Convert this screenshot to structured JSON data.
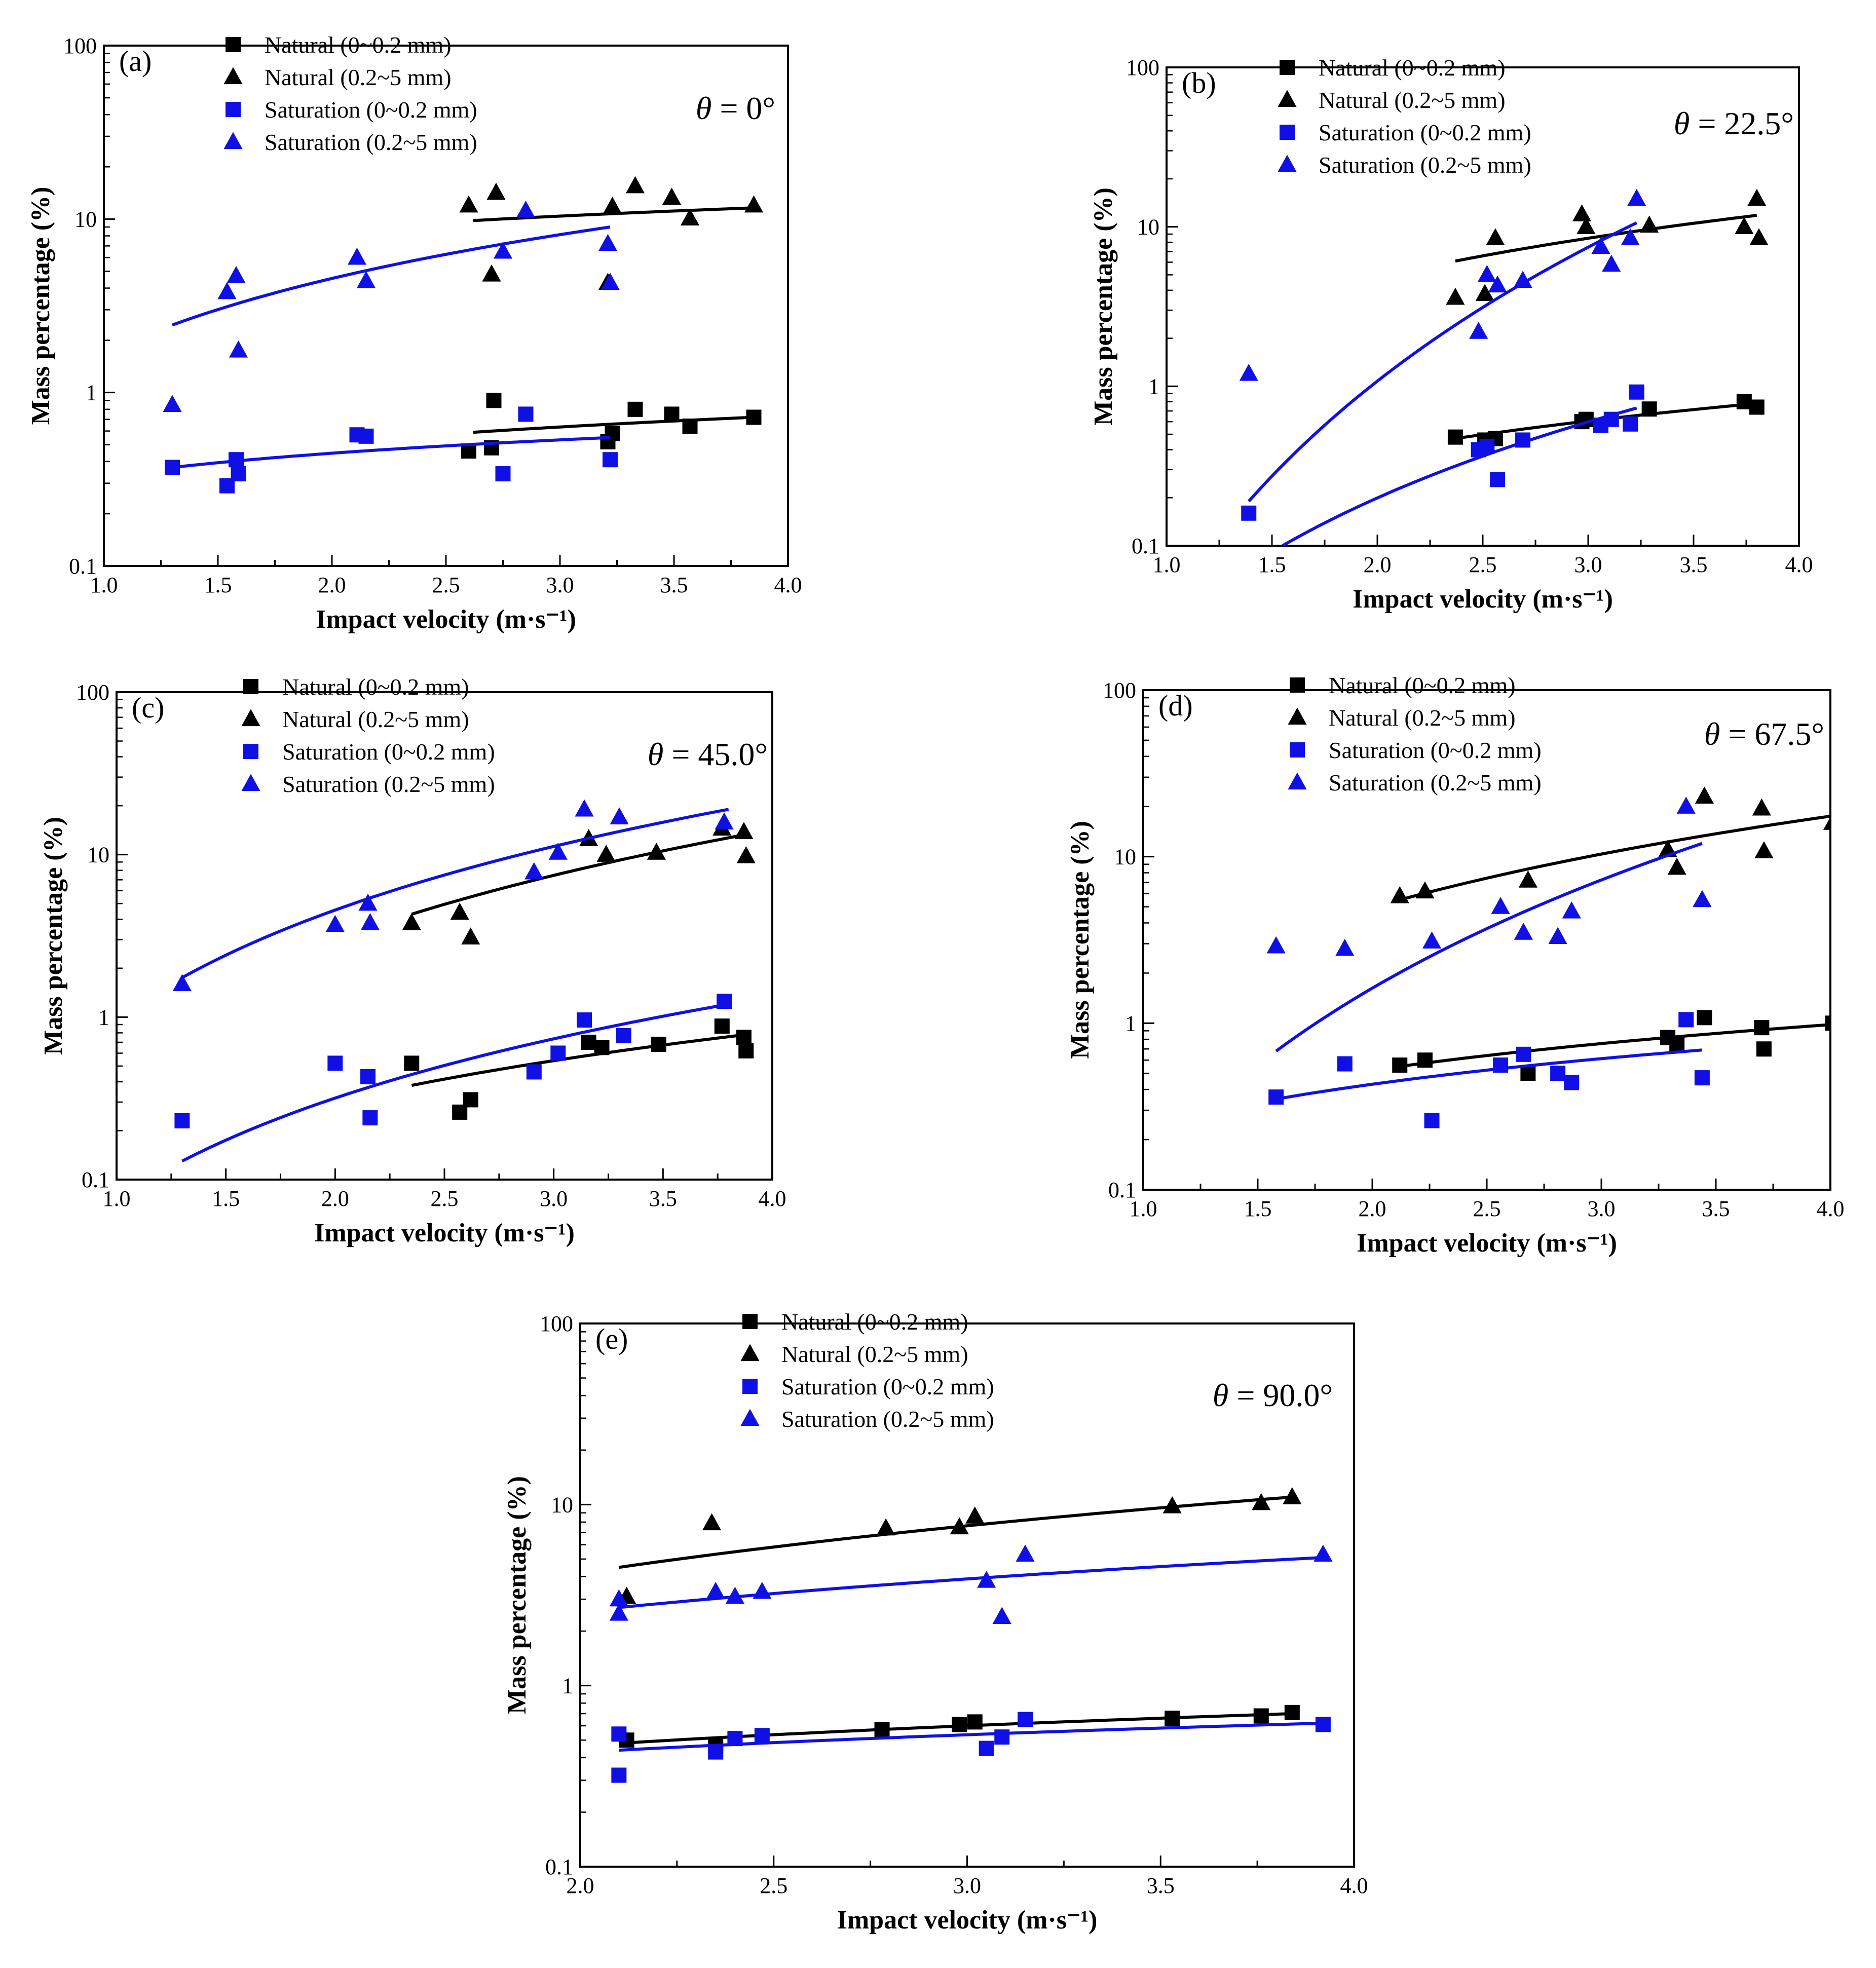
{
  "colors": {
    "natural": "#000000",
    "saturation": "#1010e6"
  },
  "legend_labels": [
    "Natural (0~0.2 mm)",
    "Natural (0.2~5 mm)",
    "Saturation (0~0.2 mm)",
    "Saturation (0.2~5 mm)"
  ],
  "chart_data": [
    {
      "type": "scatter",
      "panel": "(a)",
      "theta_label": "θ = 0°",
      "xlabel": "Impact velocity (m·s⁻¹)",
      "ylabel": "Mass percentage (%)",
      "xlim": [
        1.0,
        4.0
      ],
      "ylim": [
        0.1,
        100
      ],
      "yscale": "log",
      "xticks": [
        "1.0",
        "1.5",
        "2.0",
        "2.5",
        "3.0",
        "3.5",
        "4.0"
      ],
      "yticks": [
        "0.1",
        "1",
        "10",
        "100"
      ],
      "legend_position": "top-center",
      "series": [
        {
          "name": "Natural (0~0.2 mm)",
          "marker": "square",
          "color": "#000000",
          "x": [
            2.6,
            2.7,
            2.71,
            3.21,
            3.23,
            3.33,
            3.49,
            3.57,
            3.85
          ],
          "y": [
            0.46,
            0.48,
            0.9,
            0.52,
            0.58,
            0.8,
            0.75,
            0.64,
            0.72
          ],
          "fit": {
            "x": [
              2.62,
              3.85
            ],
            "y": [
              0.59,
              0.72
            ]
          }
        },
        {
          "name": "Natural (0.2~5 mm)",
          "marker": "triangle",
          "color": "#000000",
          "x": [
            2.6,
            2.7,
            2.72,
            3.21,
            3.23,
            3.33,
            3.49,
            3.57,
            3.85
          ],
          "y": [
            12,
            4.8,
            14.2,
            4.3,
            11.8,
            15.5,
            13.3,
            10.1,
            12
          ],
          "fit": {
            "x": [
              2.62,
              3.85
            ],
            "y": [
              9.8,
              11.6
            ]
          }
        },
        {
          "name": "Saturation (0~0.2 mm)",
          "marker": "square",
          "color": "#1010e6",
          "x": [
            1.3,
            1.54,
            1.58,
            1.59,
            2.11,
            2.15,
            2.75,
            2.85,
            3.22
          ],
          "y": [
            0.37,
            0.29,
            0.41,
            0.34,
            0.57,
            0.56,
            0.34,
            0.75,
            0.41
          ],
          "fit": {
            "x": [
              1.3,
              3.22
            ],
            "y": [
              0.37,
              0.55
            ]
          }
        },
        {
          "name": "Saturation (0.2~5 mm)",
          "marker": "triangle",
          "color": "#1010e6",
          "x": [
            1.3,
            1.54,
            1.58,
            1.59,
            2.11,
            2.15,
            2.75,
            2.85,
            3.21,
            3.22
          ],
          "y": [
            0.85,
            3.8,
            4.7,
            1.75,
            6,
            4.4,
            6.5,
            11.2,
            7.2,
            4.3
          ],
          "fit": {
            "x": [
              1.3,
              3.22
            ],
            "y": [
              2.45,
              9.0
            ]
          }
        }
      ]
    },
    {
      "type": "scatter",
      "panel": "(b)",
      "theta_label": "θ = 22.5°",
      "xlabel": "Impact velocity (m·s⁻¹)",
      "ylabel": "Mass percentage (%)",
      "xlim": [
        1.0,
        4.0
      ],
      "ylim": [
        0.1,
        100
      ],
      "yscale": "log",
      "xticks": [
        "1.0",
        "1.5",
        "2.0",
        "2.5",
        "3.0",
        "3.5",
        "4.0"
      ],
      "yticks": [
        "0.1",
        "1",
        "10",
        "100"
      ],
      "legend_position": "top-center",
      "series": [
        {
          "name": "Natural (0~0.2 mm)",
          "marker": "square",
          "color": "#000000",
          "x": [
            2.37,
            2.51,
            2.56,
            2.97,
            2.99,
            3.29,
            3.74,
            3.8
          ],
          "y": [
            0.48,
            0.46,
            0.47,
            0.6,
            0.62,
            0.72,
            0.8,
            0.74
          ],
          "fit": {
            "x": [
              2.37,
              3.8
            ],
            "y": [
              0.47,
              0.78
            ]
          }
        },
        {
          "name": "Natural (0.2~5 mm)",
          "marker": "triangle",
          "color": "#000000",
          "x": [
            2.37,
            2.51,
            2.56,
            2.97,
            2.99,
            3.29,
            3.74,
            3.8,
            3.81
          ],
          "y": [
            3.6,
            3.8,
            8.5,
            12,
            10,
            10.2,
            10,
            15,
            8.5
          ],
          "fit": {
            "x": [
              2.37,
              3.8
            ],
            "y": [
              6.1,
              11.8
            ]
          }
        },
        {
          "name": "Saturation (0~0.2 mm)",
          "marker": "square",
          "color": "#1010e6",
          "x": [
            1.39,
            2.48,
            2.52,
            2.57,
            2.69,
            3.06,
            3.11,
            3.2,
            3.23
          ],
          "y": [
            0.16,
            0.4,
            0.42,
            0.26,
            0.46,
            0.57,
            0.62,
            0.58,
            0.92
          ],
          "fit": {
            "x": [
              1.55,
              3.23
            ],
            "y": [
              0.1,
              0.73
            ]
          }
        },
        {
          "name": "Saturation (0.2~5 mm)",
          "marker": "triangle",
          "color": "#1010e6",
          "x": [
            1.39,
            2.48,
            2.52,
            2.57,
            2.69,
            3.06,
            3.11,
            3.2,
            3.23
          ],
          "y": [
            1.2,
            2.2,
            5,
            4.3,
            4.6,
            7.5,
            5.8,
            8.5,
            15
          ],
          "fit": {
            "x": [
              1.39,
              3.23
            ],
            "y": [
              0.19,
              10.6
            ]
          }
        }
      ]
    },
    {
      "type": "scatter",
      "panel": "(c)",
      "theta_label": "θ = 45.0°",
      "xlabel": "Impact velocity (m·s⁻¹)",
      "ylabel": "Mass percentage (%)",
      "xlim": [
        1.0,
        4.0
      ],
      "ylim": [
        0.1,
        100
      ],
      "yscale": "log",
      "xticks": [
        "1.0",
        "1.5",
        "2.0",
        "2.5",
        "3.0",
        "3.5",
        "4.0"
      ],
      "yticks": [
        "0.1",
        "1",
        "10",
        "100"
      ],
      "legend_position": "top-center",
      "series": [
        {
          "name": "Natural (0~0.2 mm)",
          "marker": "square",
          "color": "#000000",
          "x": [
            2.35,
            2.57,
            2.62,
            3.16,
            3.22,
            3.48,
            3.77,
            3.87,
            3.88
          ],
          "y": [
            0.52,
            0.26,
            0.31,
            0.7,
            0.65,
            0.68,
            0.88,
            0.75,
            0.62
          ],
          "fit": {
            "x": [
              2.35,
              3.88
            ],
            "y": [
              0.38,
              0.78
            ]
          }
        },
        {
          "name": "Natural (0.2~5 mm)",
          "marker": "triangle",
          "color": "#000000",
          "x": [
            2.35,
            2.57,
            2.62,
            2.91,
            3.16,
            3.24,
            3.47,
            3.77,
            3.87,
            3.88
          ],
          "y": [
            3.8,
            4.4,
            3.1,
            7.8,
            12.5,
            10,
            10.3,
            14.5,
            13.8,
            9.8
          ],
          "fit": {
            "x": [
              2.35,
              3.88
            ],
            "y": [
              4.3,
              13.3
            ]
          }
        },
        {
          "name": "Saturation (0~0.2 mm)",
          "marker": "square",
          "color": "#1010e6",
          "x": [
            1.3,
            2.0,
            2.15,
            2.16,
            2.91,
            3.02,
            3.14,
            3.32,
            3.78
          ],
          "y": [
            0.23,
            0.52,
            0.43,
            0.24,
            0.46,
            0.6,
            0.96,
            0.77,
            1.25
          ],
          "fit": {
            "x": [
              1.3,
              3.8
            ],
            "y": [
              0.13,
              1.2
            ]
          }
        },
        {
          "name": "Saturation (0.2~5 mm)",
          "marker": "triangle",
          "color": "#1010e6",
          "x": [
            1.3,
            2.0,
            2.15,
            2.16,
            2.91,
            3.02,
            3.14,
            3.3,
            3.78
          ],
          "y": [
            1.6,
            3.7,
            5,
            3.8,
            7.8,
            10.3,
            19,
            17,
            15.8
          ],
          "fit": {
            "x": [
              1.3,
              3.8
            ],
            "y": [
              1.75,
              19
            ]
          }
        }
      ]
    },
    {
      "type": "scatter",
      "panel": "(d)",
      "theta_label": "θ = 67.5°",
      "xlabel": "Impact velocity (m·s⁻¹)",
      "ylabel": "Mass percentage (%)",
      "xlim": [
        1.0,
        4.0
      ],
      "ylim": [
        0.1,
        100
      ],
      "yscale": "log",
      "xticks": [
        "1.0",
        "1.5",
        "2.0",
        "2.5",
        "3.0",
        "3.5",
        "4.0"
      ],
      "yticks": [
        "0.1",
        "1",
        "10",
        "100"
      ],
      "legend_position": "top-center",
      "series": [
        {
          "name": "Natural (0~0.2 mm)",
          "marker": "square",
          "color": "#000000",
          "x": [
            2.12,
            2.23,
            2.68,
            3.29,
            3.33,
            3.45,
            3.7,
            3.71,
            4.01
          ],
          "y": [
            0.56,
            0.6,
            0.5,
            0.82,
            0.75,
            1.08,
            0.94,
            0.7,
            1.0
          ],
          "fit": {
            "x": [
              2.12,
              4.0
            ],
            "y": [
              0.55,
              0.98
            ]
          }
        },
        {
          "name": "Natural (0.2~5 mm)",
          "marker": "triangle",
          "color": "#000000",
          "x": [
            2.12,
            2.23,
            2.68,
            3.29,
            3.33,
            3.45,
            3.7,
            3.71,
            4.01
          ],
          "y": [
            5.8,
            6.2,
            7.2,
            11,
            8.6,
            23,
            19.5,
            10.8,
            16
          ],
          "fit": {
            "x": [
              2.12,
              4.0
            ],
            "y": [
              5.5,
              17.5
            ]
          }
        },
        {
          "name": "Saturation (0~0.2 mm)",
          "marker": "square",
          "color": "#1010e6",
          "x": [
            1.58,
            1.88,
            2.26,
            2.56,
            2.66,
            2.81,
            2.87,
            3.37,
            3.44
          ],
          "y": [
            0.36,
            0.57,
            0.26,
            0.56,
            0.65,
            0.5,
            0.44,
            1.05,
            0.47
          ],
          "fit": {
            "x": [
              1.58,
              3.44
            ],
            "y": [
              0.35,
              0.69
            ]
          }
        },
        {
          "name": "Saturation (0.2~5 mm)",
          "marker": "triangle",
          "color": "#1010e6",
          "x": [
            1.58,
            1.88,
            2.26,
            2.56,
            2.66,
            2.81,
            2.87,
            3.37,
            3.44
          ],
          "y": [
            2.9,
            2.8,
            3.1,
            5,
            3.5,
            3.3,
            4.7,
            20,
            5.5
          ],
          "fit": {
            "x": [
              1.58,
              3.44
            ],
            "y": [
              0.68,
              12
            ]
          }
        }
      ]
    },
    {
      "type": "scatter",
      "panel": "(e)",
      "theta_label": "θ = 90.0°",
      "xlabel": "Impact velocity (m·s⁻¹)",
      "ylabel": "Mass percentage (%)",
      "xlim": [
        2.0,
        4.0
      ],
      "ylim": [
        0.1,
        100
      ],
      "yscale": "log",
      "xticks": [
        "2.0",
        "2.5",
        "3.0",
        "3.5",
        "4.0"
      ],
      "yticks": [
        "0.1",
        "1",
        "10",
        "100"
      ],
      "legend_position": "top-center",
      "series": [
        {
          "name": "Natural (0~0.2 mm)",
          "marker": "square",
          "color": "#000000",
          "x": [
            2.12,
            2.35,
            2.78,
            2.98,
            3.02,
            3.53,
            3.76,
            3.84
          ],
          "y": [
            0.5,
            0.47,
            0.57,
            0.61,
            0.63,
            0.66,
            0.68,
            0.71
          ],
          "fit": {
            "x": [
              2.1,
              3.84
            ],
            "y": [
              0.48,
              0.7
            ]
          }
        },
        {
          "name": "Natural (0.2~5 mm)",
          "marker": "triangle",
          "color": "#000000",
          "x": [
            2.12,
            2.34,
            2.79,
            2.98,
            3.02,
            3.53,
            3.76,
            3.84
          ],
          "y": [
            3.1,
            7.9,
            7.4,
            7.5,
            8.6,
            9.8,
            10.2,
            11
          ],
          "fit": {
            "x": [
              2.1,
              3.84
            ],
            "y": [
              4.5,
              11
            ]
          }
        },
        {
          "name": "Saturation (0~0.2 mm)",
          "marker": "square",
          "color": "#1010e6",
          "x": [
            2.1,
            2.1,
            2.35,
            2.4,
            2.47,
            3.05,
            3.09,
            3.15,
            3.92
          ],
          "y": [
            0.54,
            0.32,
            0.43,
            0.51,
            0.53,
            0.45,
            0.52,
            0.65,
            0.61
          ],
          "fit": {
            "x": [
              2.1,
              3.92
            ],
            "y": [
              0.44,
              0.62
            ]
          }
        },
        {
          "name": "Saturation (0.2~5 mm)",
          "marker": "triangle",
          "color": "#1010e6",
          "x": [
            2.1,
            2.1,
            2.35,
            2.4,
            2.47,
            3.05,
            3.09,
            3.15,
            3.92
          ],
          "y": [
            3.0,
            2.5,
            3.3,
            3.1,
            3.3,
            3.8,
            2.4,
            5.3,
            5.3
          ],
          "fit": {
            "x": [
              2.1,
              3.92
            ],
            "y": [
              2.7,
              5.1
            ]
          }
        }
      ]
    }
  ]
}
